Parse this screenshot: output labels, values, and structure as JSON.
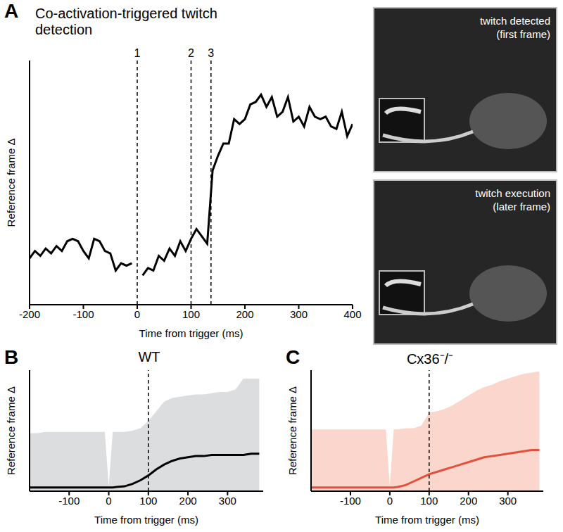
{
  "chart_data": [
    {
      "panel": "A",
      "type": "line",
      "title": "Co-activation-triggered twitch detection",
      "xlabel": "Time from trigger (ms)",
      "ylabel": "Reference frame Δ",
      "xlim": [
        -200,
        400
      ],
      "xticks": [
        -200,
        -100,
        0,
        100,
        200,
        300,
        400
      ],
      "ylim": [
        0,
        10
      ],
      "tick_labels": "x",
      "grid": false,
      "color": "#000000",
      "x": [
        -200,
        -190,
        -180,
        -170,
        -160,
        -150,
        -140,
        -130,
        -120,
        -110,
        -100,
        -90,
        -80,
        -70,
        -60,
        -50,
        -40,
        -30,
        -20,
        -10,
        0,
        10,
        20,
        30,
        40,
        50,
        60,
        70,
        80,
        90,
        100,
        110,
        120,
        130,
        140,
        150,
        160,
        170,
        180,
        190,
        200,
        210,
        220,
        230,
        240,
        250,
        260,
        270,
        280,
        290,
        300,
        310,
        320,
        330,
        340,
        350,
        360,
        370,
        380,
        390,
        400
      ],
      "values": [
        1.9,
        2.2,
        2.0,
        2.3,
        2.1,
        2.4,
        2.2,
        2.6,
        2.7,
        2.6,
        2.2,
        1.9,
        2.7,
        2.6,
        2.2,
        2.1,
        1.4,
        1.7,
        1.6,
        1.7,
        null,
        1.2,
        1.5,
        1.4,
        2.0,
        1.8,
        2.3,
        2.0,
        2.6,
        2.2,
        2.7,
        3.1,
        2.8,
        2.5,
        5.5,
        6.1,
        6.6,
        6.6,
        7.6,
        7.4,
        7.6,
        8.2,
        8.3,
        8.6,
        8.1,
        8.5,
        7.7,
        7.9,
        8.5,
        7.5,
        7.7,
        7.3,
        8.1,
        7.7,
        7.6,
        7.7,
        7.3,
        7.2,
        7.9,
        6.9,
        7.4
      ],
      "reference_lines": [
        {
          "value": 0,
          "label": "1"
        },
        {
          "value": 100,
          "label": "2"
        },
        {
          "value": 137,
          "label": "3"
        }
      ]
    },
    {
      "panel": "B",
      "type": "line",
      "title": "WT",
      "xlabel": "Time from trigger (ms)",
      "ylabel": "Reference frame Δ",
      "xlim": [
        -200,
        390
      ],
      "xticks": [
        -100,
        0,
        100,
        200,
        300
      ],
      "ylim": [
        0,
        10
      ],
      "tick_labels": "x",
      "grid": false,
      "x": [
        -200,
        -180,
        -160,
        -140,
        -120,
        -100,
        -80,
        -60,
        -40,
        -20,
        -10,
        0,
        10,
        20,
        40,
        60,
        80,
        100,
        120,
        140,
        160,
        180,
        200,
        220,
        240,
        260,
        280,
        300,
        320,
        340,
        360,
        380
      ],
      "series": [
        {
          "type": "area",
          "color": "#dcdddf",
          "values": [
            4.8,
            4.8,
            4.9,
            4.9,
            4.9,
            4.9,
            4.9,
            4.9,
            4.9,
            4.9,
            4.9,
            0.4,
            4.9,
            4.9,
            4.9,
            5.0,
            5.2,
            5.8,
            6.6,
            7.4,
            7.7,
            7.8,
            7.9,
            8.0,
            8.0,
            8.1,
            8.2,
            8.2,
            8.4,
            9.3,
            9.3,
            9.3
          ]
        },
        {
          "type": "line",
          "color": "#000000",
          "values": [
            0.3,
            0.3,
            0.3,
            0.3,
            0.3,
            0.3,
            0.3,
            0.3,
            0.3,
            0.3,
            0.3,
            0.3,
            0.3,
            0.35,
            0.4,
            0.6,
            0.9,
            1.3,
            1.8,
            2.2,
            2.5,
            2.7,
            2.8,
            2.9,
            2.9,
            3.0,
            3.0,
            3.0,
            3.0,
            3.0,
            3.1,
            3.1
          ]
        }
      ],
      "reference_lines": [
        {
          "value": 100
        }
      ]
    },
    {
      "panel": "C",
      "type": "line",
      "title": "Cx36⁻/⁻",
      "xlabel": "Time from trigger (ms)",
      "ylabel": "Reference frame Δ",
      "xlim": [
        -200,
        390
      ],
      "xticks": [
        -100,
        0,
        100,
        200,
        300
      ],
      "ylim": [
        0,
        10
      ],
      "tick_labels": "x",
      "grid": false,
      "x": [
        -200,
        -180,
        -160,
        -140,
        -120,
        -100,
        -80,
        -60,
        -40,
        -20,
        -10,
        0,
        10,
        20,
        40,
        60,
        80,
        100,
        120,
        140,
        160,
        180,
        200,
        220,
        240,
        260,
        280,
        300,
        320,
        340,
        360,
        380
      ],
      "series": [
        {
          "type": "area",
          "color": "#fad6cc",
          "values": [
            5.1,
            5.1,
            5.1,
            5.1,
            5.1,
            5.1,
            5.1,
            5.1,
            5.1,
            5.1,
            5.1,
            0.4,
            5.1,
            5.1,
            5.2,
            5.2,
            5.4,
            6.5,
            6.6,
            6.8,
            7.1,
            7.5,
            7.9,
            8.3,
            8.6,
            8.8,
            9.1,
            9.3,
            9.5,
            9.7,
            9.8,
            9.9
          ]
        },
        {
          "type": "line",
          "color": "#e5503c",
          "values": [
            0.3,
            0.3,
            0.3,
            0.3,
            0.3,
            0.3,
            0.3,
            0.3,
            0.3,
            0.3,
            0.3,
            0.3,
            0.3,
            0.35,
            0.5,
            0.8,
            1.1,
            1.4,
            1.6,
            1.8,
            2.0,
            2.2,
            2.4,
            2.6,
            2.8,
            2.9,
            3.0,
            3.1,
            3.2,
            3.3,
            3.4,
            3.4
          ]
        }
      ],
      "reference_lines": [
        {
          "value": 100
        }
      ]
    }
  ],
  "images": [
    {
      "label": [
        "twitch detected",
        "(first frame)"
      ]
    },
    {
      "label": [
        "twitch execution",
        "(later frame)"
      ]
    }
  ]
}
